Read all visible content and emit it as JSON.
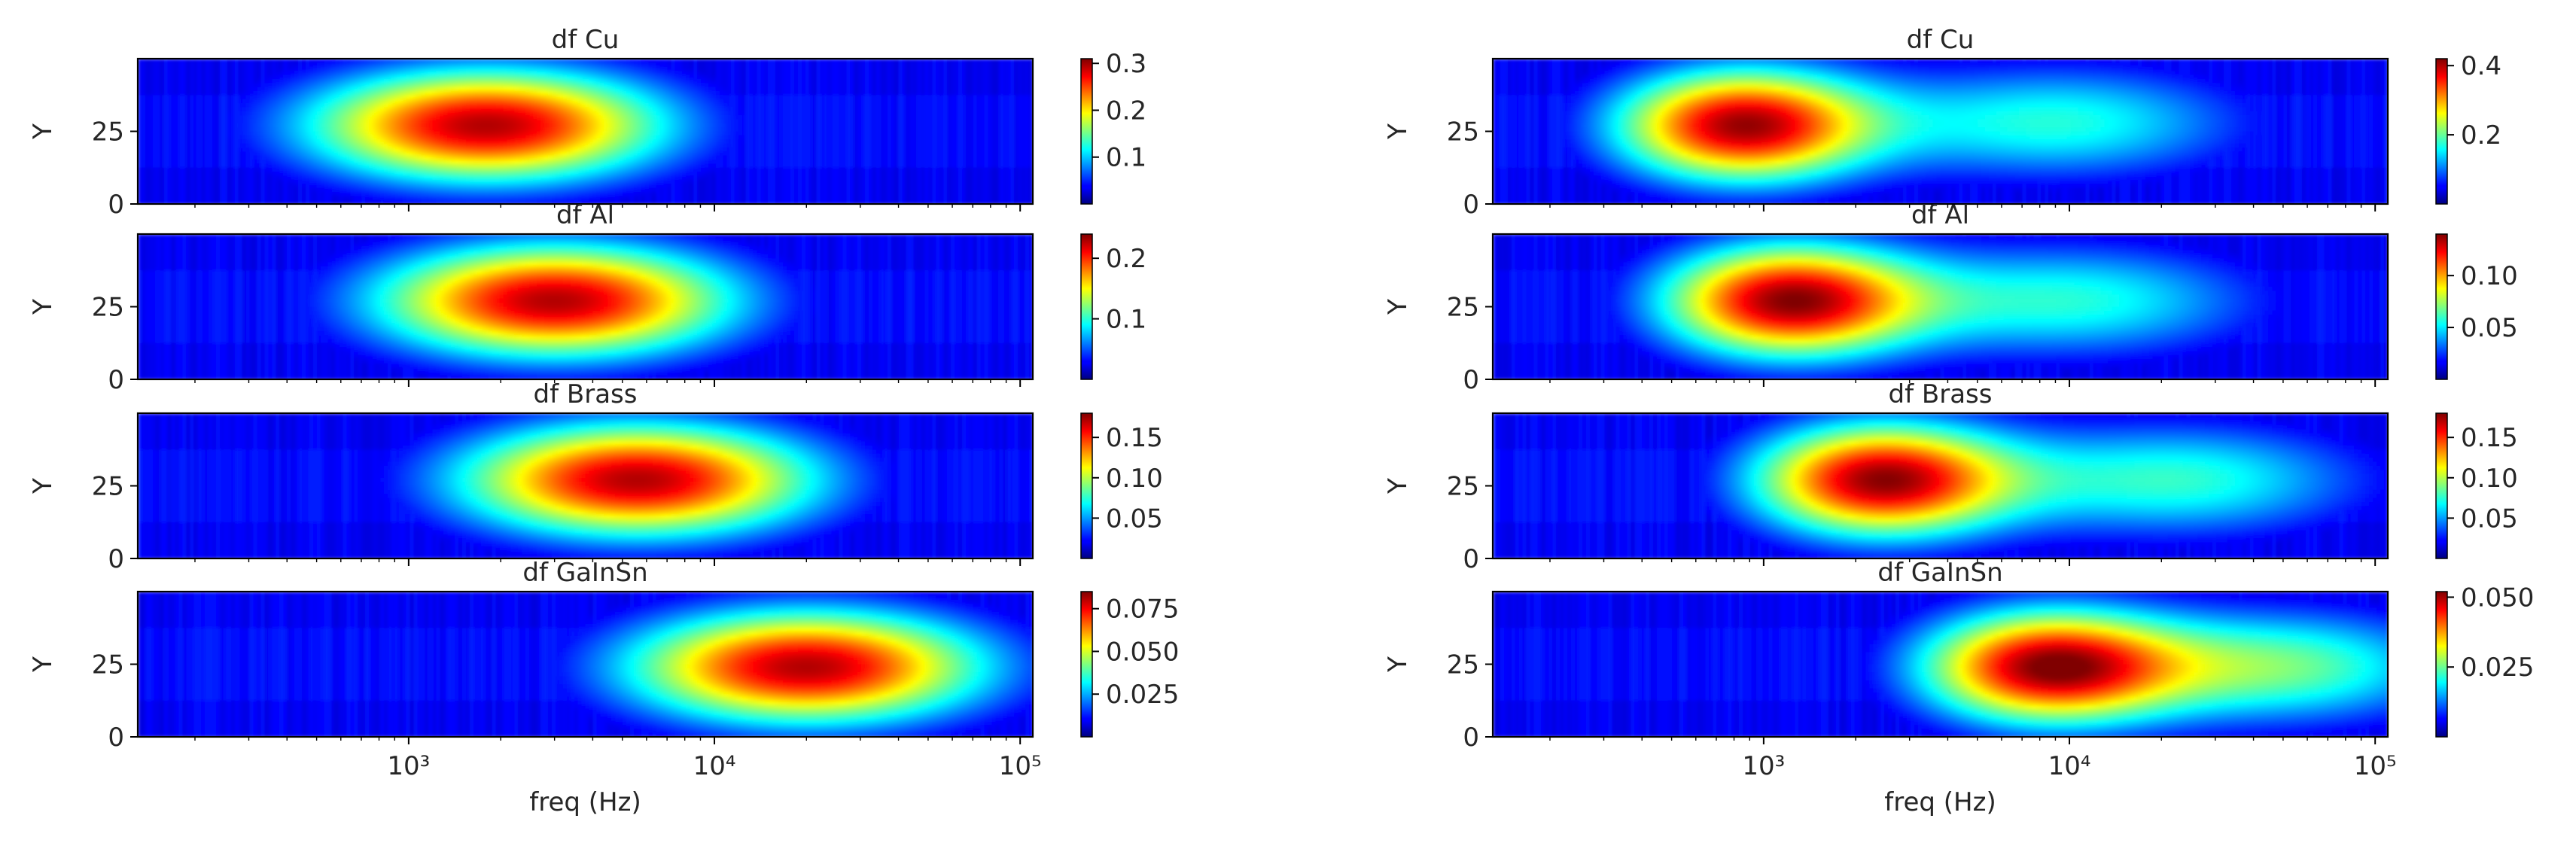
{
  "chart_data": [
    {
      "type": "heatmap",
      "column": "left",
      "title": "df Cu",
      "xlabel": "",
      "ylabel": "Y",
      "x_scale": "log",
      "xlim": [
        130,
        110000
      ],
      "ylim": [
        0,
        50
      ],
      "yticks": [
        0,
        25
      ],
      "xticks": [],
      "xtick_labels": [],
      "colorbar": {
        "ticks": [
          0.1,
          0.2,
          0.3
        ],
        "tick_labels": [
          "0.1",
          "0.2",
          "0.3"
        ],
        "min": 0.0,
        "max": 0.31
      },
      "blobs": [
        {
          "freq_hz": 1800,
          "y": 27,
          "peak": 0.31,
          "log_width": 0.42,
          "y_width": 14
        }
      ]
    },
    {
      "type": "heatmap",
      "column": "left",
      "title": "df Al",
      "xlabel": "",
      "ylabel": "Y",
      "x_scale": "log",
      "xlim": [
        130,
        110000
      ],
      "ylim": [
        0,
        50
      ],
      "yticks": [
        0,
        25
      ],
      "xticks": [],
      "xtick_labels": [],
      "colorbar": {
        "ticks": [
          0.1,
          0.2
        ],
        "tick_labels": [
          "0.1",
          "0.2"
        ],
        "min": 0.0,
        "max": 0.24
      },
      "blobs": [
        {
          "freq_hz": 3000,
          "y": 27,
          "peak": 0.24,
          "log_width": 0.42,
          "y_width": 14
        }
      ]
    },
    {
      "type": "heatmap",
      "column": "left",
      "title": "df Brass",
      "xlabel": "",
      "ylabel": "Y",
      "x_scale": "log",
      "xlim": [
        130,
        110000
      ],
      "ylim": [
        0,
        50
      ],
      "yticks": [
        0,
        25
      ],
      "xticks": [],
      "xtick_labels": [],
      "colorbar": {
        "ticks": [
          0.05,
          0.1,
          0.15
        ],
        "tick_labels": [
          "0.05",
          "0.10",
          "0.15"
        ],
        "min": 0.0,
        "max": 0.18
      },
      "blobs": [
        {
          "freq_hz": 5600,
          "y": 27,
          "peak": 0.18,
          "log_width": 0.42,
          "y_width": 14
        }
      ]
    },
    {
      "type": "heatmap",
      "column": "left",
      "title": "df GaInSn",
      "xlabel": "freq (Hz)",
      "ylabel": "Y",
      "x_scale": "log",
      "xlim": [
        130,
        110000
      ],
      "ylim": [
        0,
        50
      ],
      "yticks": [
        0,
        25
      ],
      "xticks": [
        1000,
        10000,
        100000
      ],
      "xtick_labels": [
        "10³",
        "10⁴",
        "10⁵"
      ],
      "colorbar": {
        "ticks": [
          0.025,
          0.05,
          0.075
        ],
        "tick_labels": [
          "0.025",
          "0.050",
          "0.075"
        ],
        "min": 0.0,
        "max": 0.085
      },
      "blobs": [
        {
          "freq_hz": 20000,
          "y": 24,
          "peak": 0.085,
          "log_width": 0.42,
          "y_width": 14
        }
      ]
    },
    {
      "type": "heatmap",
      "column": "right",
      "title": "df Cu",
      "xlabel": "",
      "ylabel": "Y",
      "x_scale": "log",
      "xlim": [
        130,
        110000
      ],
      "ylim": [
        0,
        50
      ],
      "yticks": [
        0,
        25
      ],
      "xticks": [],
      "xtick_labels": [],
      "colorbar": {
        "ticks": [
          0.2,
          0.4
        ],
        "tick_labels": [
          "0.2",
          "0.4"
        ],
        "min": 0.0,
        "max": 0.42
      },
      "blobs": [
        {
          "freq_hz": 850,
          "y": 27,
          "peak": 0.42,
          "log_width": 0.3,
          "y_width": 14
        },
        {
          "freq_hz": 9000,
          "y": 28,
          "peak": 0.18,
          "log_width": 0.45,
          "y_width": 14
        }
      ]
    },
    {
      "type": "heatmap",
      "column": "right",
      "title": "df Al",
      "xlabel": "",
      "ylabel": "Y",
      "x_scale": "log",
      "xlim": [
        130,
        110000
      ],
      "ylim": [
        0,
        50
      ],
      "yticks": [
        0,
        25
      ],
      "xticks": [],
      "xtick_labels": [],
      "colorbar": {
        "ticks": [
          0.05,
          0.1
        ],
        "tick_labels": [
          "0.05",
          "0.10"
        ],
        "min": 0.0,
        "max": 0.14
      },
      "blobs": [
        {
          "freq_hz": 1200,
          "y": 27,
          "peak": 0.14,
          "log_width": 0.3,
          "y_width": 14
        },
        {
          "freq_hz": 10000,
          "y": 27,
          "peak": 0.06,
          "log_width": 0.45,
          "y_width": 14
        }
      ]
    },
    {
      "type": "heatmap",
      "column": "right",
      "title": "df Brass",
      "xlabel": "",
      "ylabel": "Y",
      "x_scale": "log",
      "xlim": [
        130,
        110000
      ],
      "ylim": [
        0,
        50
      ],
      "yticks": [
        0,
        25
      ],
      "xticks": [],
      "xtick_labels": [],
      "colorbar": {
        "ticks": [
          0.05,
          0.1,
          0.15
        ],
        "tick_labels": [
          "0.05",
          "0.10",
          "0.15"
        ],
        "min": 0.0,
        "max": 0.18
      },
      "blobs": [
        {
          "freq_hz": 2400,
          "y": 27,
          "peak": 0.18,
          "log_width": 0.3,
          "y_width": 14
        },
        {
          "freq_hz": 22000,
          "y": 27,
          "peak": 0.08,
          "log_width": 0.45,
          "y_width": 14
        }
      ]
    },
    {
      "type": "heatmap",
      "column": "right",
      "title": "df GaInSn",
      "xlabel": "freq (Hz)",
      "ylabel": "Y",
      "x_scale": "log",
      "xlim": [
        130,
        110000
      ],
      "ylim": [
        0,
        50
      ],
      "yticks": [
        0,
        25
      ],
      "xticks": [
        1000,
        10000,
        100000
      ],
      "xtick_labels": [
        "10³",
        "10⁴",
        "10⁵"
      ],
      "colorbar": {
        "ticks": [
          0.025,
          0.05
        ],
        "tick_labels": [
          "0.025",
          "0.050"
        ],
        "min": 0.0,
        "max": 0.052
      },
      "blobs": [
        {
          "freq_hz": 8500,
          "y": 24,
          "peak": 0.052,
          "log_width": 0.3,
          "y_width": 14
        },
        {
          "freq_hz": 50000,
          "y": 24,
          "peak": 0.026,
          "log_width": 0.4,
          "y_width": 14
        }
      ]
    }
  ]
}
